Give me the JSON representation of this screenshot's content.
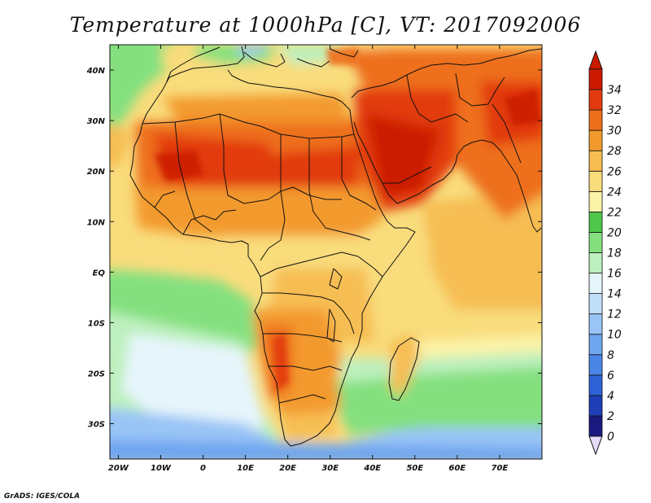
{
  "title": "Temperature at 1000hPa [C], VT: 2017092006",
  "credit": "GrADS: IGES/COLA",
  "map": {
    "lon_range": [
      -22,
      80
    ],
    "lat_range": [
      -37,
      45
    ],
    "lon_ticks": [
      {
        "lon": -20,
        "label": "20W"
      },
      {
        "lon": -10,
        "label": "10W"
      },
      {
        "lon": 0,
        "label": "0"
      },
      {
        "lon": 10,
        "label": "10E"
      },
      {
        "lon": 20,
        "label": "20E"
      },
      {
        "lon": 30,
        "label": "30E"
      },
      {
        "lon": 40,
        "label": "40E"
      },
      {
        "lon": 50,
        "label": "50E"
      },
      {
        "lon": 60,
        "label": "60E"
      },
      {
        "lon": 70,
        "label": "70E"
      }
    ],
    "lat_ticks": [
      {
        "lat": 40,
        "label": "40N"
      },
      {
        "lat": 30,
        "label": "30N"
      },
      {
        "lat": 20,
        "label": "20N"
      },
      {
        "lat": 10,
        "label": "10N"
      },
      {
        "lat": 0,
        "label": "EQ"
      },
      {
        "lat": -10,
        "label": "10S"
      },
      {
        "lat": -20,
        "label": "20S"
      },
      {
        "lat": -30,
        "label": "30S"
      }
    ]
  },
  "colorbar": {
    "levels": [
      "0",
      "2",
      "4",
      "6",
      "8",
      "10",
      "12",
      "14",
      "16",
      "18",
      "20",
      "22",
      "24",
      "26",
      "28",
      "30",
      "32",
      "34"
    ],
    "colors": [
      "#1a1a80",
      "#1f3fb8",
      "#2f62d6",
      "#4a86e6",
      "#6fa6ef",
      "#99c4f6",
      "#c2dffa",
      "#e6f5fb",
      "#bdf0be",
      "#84e07f",
      "#4ec74a",
      "#fbf3a8",
      "#f9dc7c",
      "#f6bd53",
      "#f39a2f",
      "#ee6f1c",
      "#e23a10",
      "#cc1a00"
    ],
    "under_color": "#e6dcf7",
    "over_color": "#cc1a00"
  }
}
